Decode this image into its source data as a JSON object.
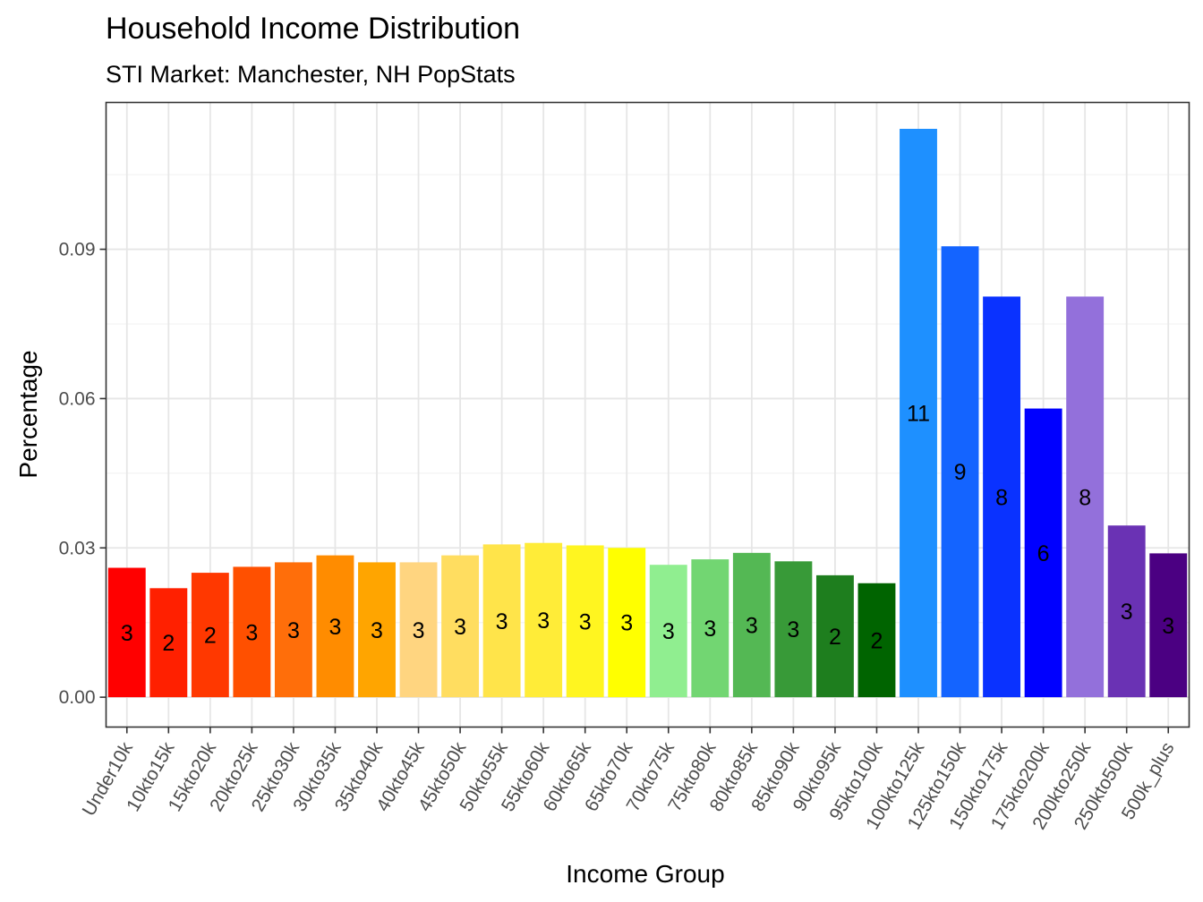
{
  "chart_data": {
    "type": "bar",
    "title": "Household Income Distribution",
    "subtitle": "STI Market: Manchester, NH PopStats",
    "xlabel": "Income Group",
    "ylabel": "Percentage",
    "ylim": [
      -0.006,
      0.1195
    ],
    "yticks": [
      "0.00",
      "0.03",
      "0.06",
      "0.09"
    ],
    "ytick_values": [
      0,
      0.03,
      0.06,
      0.09
    ],
    "grid": true,
    "categories": [
      "Under10k",
      "10kto15k",
      "15kto20k",
      "20kto25k",
      "25kto30k",
      "30kto35k",
      "35kto40k",
      "40kto45k",
      "45kto50k",
      "50kto55k",
      "55kto60k",
      "60kto65k",
      "65kto70k",
      "70kto75k",
      "75kto80k",
      "80kto85k",
      "85kto90k",
      "90kto95k",
      "95kto100k",
      "100kto125k",
      "125kto150k",
      "150kto175k",
      "175kto200k",
      "200kto250k",
      "250kto500k",
      "500k_plus"
    ],
    "values": [
      0.026,
      0.0219,
      0.025,
      0.0262,
      0.0271,
      0.0285,
      0.0271,
      0.0271,
      0.0285,
      0.0307,
      0.031,
      0.0305,
      0.03,
      0.0266,
      0.0277,
      0.029,
      0.0273,
      0.0245,
      0.0229,
      0.1142,
      0.0906,
      0.0805,
      0.058,
      0.0805,
      0.0345,
      0.0289
    ],
    "labels": [
      "3",
      "2",
      "2",
      "3",
      "3",
      "3",
      "3",
      "3",
      "3",
      "3",
      "3",
      "3",
      "3",
      "3",
      "3",
      "3",
      "3",
      "2",
      "2",
      "11",
      "9",
      "8",
      "6",
      "8",
      "3",
      "3"
    ],
    "colors": [
      "#ff0000",
      "#ff2000",
      "#ff3800",
      "#ff5000",
      "#ff6e0a",
      "#ff8c00",
      "#ffa500",
      "#ffd580",
      "#ffdd60",
      "#ffe44a",
      "#ffec38",
      "#fff520",
      "#ffff00",
      "#90ee90",
      "#72d672",
      "#54b854",
      "#389a38",
      "#1e7e1e",
      "#006400",
      "#1e90ff",
      "#1464ff",
      "#0a32ff",
      "#0000ff",
      "#9370db",
      "#6a32b4",
      "#4b0082"
    ]
  }
}
